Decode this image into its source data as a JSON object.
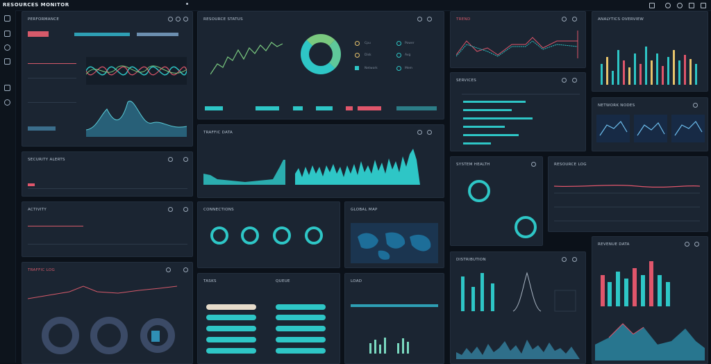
{
  "app": {
    "title": "RESOURCES MONITOR",
    "top_icons": [
      "minimize-icon",
      "bell-icon",
      "user-icon",
      "settings-icon",
      "grid-icon"
    ]
  },
  "sidebar": {
    "items": [
      "grid-icon",
      "chart-icon",
      "cloud-icon",
      "shield-icon",
      "monitor-icon",
      "globe-icon"
    ]
  },
  "colors": {
    "accent_teal": "#2ec6c6",
    "accent_green": "#7ac97f",
    "accent_red": "#e0566b",
    "accent_cream": "#e7dccb",
    "panel_bg": "#1b2532"
  },
  "panels": {
    "overview": {
      "title": "PERFORMANCE"
    },
    "donut_stats": {
      "legend": [
        "Cpu",
        "Disk",
        "Network",
        "Power",
        "Avg",
        "Mem"
      ]
    },
    "throughput": {
      "title": "TRAFFIC DATA"
    },
    "horizontal_bars": {
      "title": "SERVICES"
    },
    "histogram_top": {
      "title": "ANALYTICS OVERVIEW"
    },
    "network": {
      "title": "NETWORK NODES"
    },
    "gauges": {
      "title": "SYSTEM HEALTH"
    },
    "timeline": {
      "title": "RESOURCE LOG"
    },
    "alerts": {
      "title": "SECURITY ALERTS"
    },
    "map": {
      "title": "GLOBAL MAP"
    },
    "progress": {
      "titles": [
        "TASKS",
        "QUEUE"
      ]
    },
    "distribution": {
      "title": "DISTRIBUTION"
    },
    "rings_panel": {
      "title": "CONNECTIONS"
    },
    "activity": {
      "title": "ACTIVITY"
    },
    "bars_bottom": {
      "title": "REVENUE DATA"
    }
  }
}
